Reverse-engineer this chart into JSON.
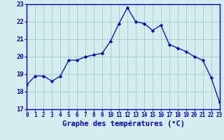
{
  "hours": [
    0,
    1,
    2,
    3,
    4,
    5,
    6,
    7,
    8,
    9,
    10,
    11,
    12,
    13,
    14,
    15,
    16,
    17,
    18,
    19,
    20,
    21,
    22,
    23
  ],
  "temps": [
    18.4,
    18.9,
    18.9,
    18.6,
    18.9,
    19.8,
    19.8,
    20.0,
    20.1,
    20.2,
    20.9,
    21.9,
    22.8,
    22.0,
    21.9,
    21.5,
    21.8,
    20.7,
    20.5,
    20.3,
    20.0,
    19.8,
    18.8,
    17.4
  ],
  "line_color": "#0000cc",
  "marker": "D",
  "marker_size": 2.2,
  "bg_color": "#d4eef0",
  "grid_color": "#aacccc",
  "axis_label_color": "#0000cc",
  "tick_color": "#0000cc",
  "xlabel": "Graphe des températures (°C)",
  "ylim": [
    17,
    23
  ],
  "yticks": [
    17,
    18,
    19,
    20,
    21,
    22,
    23
  ],
  "xlim": [
    0,
    23
  ],
  "xlabel_fontsize": 7.5,
  "tick_fontsize": 5.5,
  "ytick_fontsize": 6.5,
  "spine_color": "#0000cc",
  "bottom_spine_color": "#0000bb"
}
